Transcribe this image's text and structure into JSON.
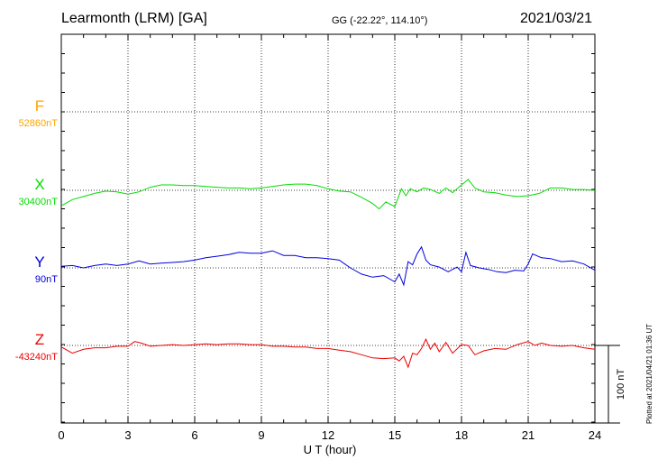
{
  "header": {
    "station": "Learmonth (LRM)  [GA]",
    "coords": "GG (-22.22°, 114.10°)",
    "date": "2021/03/21"
  },
  "footer_note": "Plotted at 2021/04/21 01:36 UT",
  "colors": {
    "F": "#ffa500",
    "X": "#00dd00",
    "Y": "#0000dd",
    "Z": "#ee0000"
  },
  "chart_data": {
    "type": "line",
    "xlabel": "U T (hour)",
    "xlim": [
      0,
      24
    ],
    "xticks": [
      "0",
      "3",
      "6",
      "9",
      "12",
      "15",
      "18",
      "21",
      "24"
    ],
    "grid": true,
    "scale_bar": "100 nT",
    "series": [
      {
        "name": "F",
        "baseline": "52860nT",
        "x": [],
        "values": []
      },
      {
        "name": "X",
        "baseline": "30400nT",
        "x": [
          0,
          0.5,
          1,
          1.5,
          2,
          2.5,
          3,
          3.5,
          4,
          4.5,
          5,
          5.5,
          6,
          6.5,
          7,
          7.5,
          8,
          8.5,
          9,
          9.5,
          10,
          10.5,
          11,
          11.5,
          12,
          12.5,
          13,
          13.5,
          14,
          14.3,
          14.6,
          15,
          15.3,
          15.5,
          15.7,
          16,
          16.3,
          16.6,
          17,
          17.3,
          17.6,
          18,
          18.3,
          18.6,
          19,
          19.5,
          20,
          20.5,
          21,
          21.5,
          22,
          22.5,
          23,
          23.5,
          24
        ],
        "values": [
          -20,
          -12,
          -8,
          -4,
          -1,
          -2,
          -5,
          -2,
          4,
          7,
          7,
          6,
          6,
          5,
          4,
          3,
          3,
          2,
          3,
          5,
          7,
          8,
          8,
          6,
          2,
          -1,
          -2,
          -9,
          -17,
          -24,
          -15,
          -21,
          2,
          -7,
          2,
          -2,
          3,
          1,
          -4,
          3,
          -3,
          7,
          14,
          3,
          -2,
          -3,
          -6,
          -8,
          -7,
          -4,
          3,
          3,
          1,
          1,
          0
        ]
      },
      {
        "name": "Y",
        "baseline": "90nT",
        "x": [
          0,
          0.5,
          1,
          1.5,
          2,
          2.5,
          3,
          3.5,
          4,
          4.5,
          5,
          5.5,
          6,
          6.5,
          7,
          7.5,
          8,
          8.5,
          9,
          9.5,
          10,
          10.5,
          11,
          11.5,
          12,
          12.5,
          13,
          13.5,
          14,
          14.5,
          15,
          15.2,
          15.4,
          15.6,
          15.8,
          16,
          16.2,
          16.4,
          16.6,
          17,
          17.4,
          17.8,
          18,
          18.2,
          18.4,
          18.8,
          19.2,
          19.6,
          20,
          20.4,
          20.8,
          21,
          21.2,
          21.6,
          22,
          22.5,
          23,
          23.5,
          24
        ],
        "values": [
          2,
          3,
          0,
          3,
          5,
          3,
          5,
          9,
          5,
          6,
          7,
          8,
          10,
          13,
          15,
          17,
          20,
          19,
          19,
          22,
          16,
          16,
          13,
          13,
          12,
          10,
          0,
          -8,
          -12,
          -10,
          -18,
          -8,
          -22,
          8,
          4,
          18,
          27,
          10,
          4,
          1,
          -5,
          1,
          -5,
          20,
          3,
          0,
          -2,
          -5,
          -6,
          -3,
          -4,
          5,
          18,
          13,
          12,
          8,
          9,
          5,
          -3
        ]
      },
      {
        "name": "Z",
        "baseline": "-43240nT",
        "x": [
          0,
          0.5,
          1,
          1.5,
          2,
          2.5,
          3,
          3.3,
          3.6,
          4,
          4.5,
          5,
          5.5,
          6,
          6.5,
          7,
          7.5,
          8,
          8.5,
          9,
          9.5,
          10,
          10.5,
          11,
          11.5,
          12,
          12.5,
          13,
          13.5,
          14,
          14.5,
          15,
          15.2,
          15.4,
          15.6,
          15.8,
          16,
          16.2,
          16.4,
          16.6,
          16.8,
          17,
          17.3,
          17.6,
          18,
          18.3,
          18.6,
          19,
          19.5,
          20,
          20.5,
          21,
          21.3,
          21.6,
          22,
          22.5,
          23,
          23.5,
          24
        ],
        "values": [
          -2,
          -10,
          -5,
          -3,
          -3,
          -1,
          -1,
          5,
          3,
          -1,
          0,
          1,
          0,
          1,
          2,
          1,
          2,
          2,
          1,
          1,
          -1,
          -1,
          -2,
          -2,
          -4,
          -4,
          -6,
          -8,
          -12,
          -16,
          -17,
          -16,
          -20,
          -14,
          -28,
          -10,
          -12,
          -4,
          8,
          -5,
          3,
          -8,
          4,
          -10,
          1,
          0,
          -12,
          -7,
          -4,
          -5,
          1,
          5,
          0,
          3,
          0,
          -1,
          0,
          -3,
          -5
        ]
      }
    ]
  }
}
